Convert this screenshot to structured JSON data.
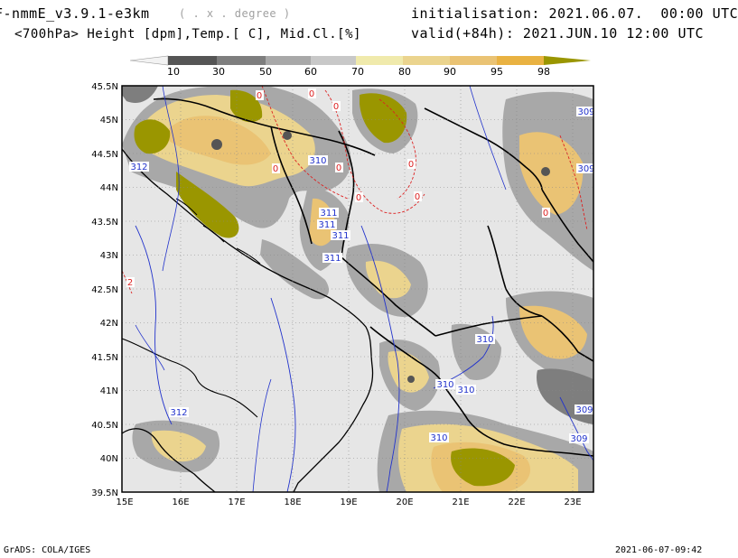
{
  "header": {
    "model_title": "F-nmmE_v3.9.1-e3km",
    "model_subtitle": "( . x . degree )",
    "field_desc": "<700hPa> Height [dpm],Temp.[ C], Mid.Cl.[%]",
    "init_line": "initialisation: 2021.06.07.  00:00 UTC",
    "valid_line": "valid(+84h): 2021.JUN.10 12:00 UTC"
  },
  "colorbar": {
    "labels": [
      "10",
      "30",
      "50",
      "60",
      "70",
      "80",
      "90",
      "95",
      "98"
    ],
    "colors": [
      "#f2f2f2",
      "#555555",
      "#7e7e7e",
      "#a8a8a8",
      "#c8c8c8",
      "#f0eaac",
      "#ebd48e",
      "#eac374",
      "#e9b242",
      "#9a9600"
    ]
  },
  "map": {
    "background": "#e6e6e6",
    "lat_labels": [
      "45.5N",
      "45N",
      "44.5N",
      "44N",
      "43.5N",
      "43N",
      "42.5N",
      "42N",
      "41.5N",
      "41N",
      "40.5N",
      "40N",
      "39.5N"
    ],
    "lon_labels": [
      "15E",
      "16E",
      "17E",
      "18E",
      "19E",
      "20E",
      "21E",
      "22E",
      "23E"
    ],
    "height_contour_labels": [
      "312",
      "310",
      "311",
      "311",
      "311",
      "311",
      "310",
      "310",
      "310",
      "312",
      "310",
      "309",
      "309",
      "309",
      "309"
    ],
    "temp_contour_labels": [
      "0",
      "0",
      "0",
      "0",
      "0",
      "0",
      "0",
      "0",
      "0",
      "2"
    ],
    "colors": {
      "height_contour": "#2233cc",
      "temp_contour": "#dd2222",
      "borders": "#000000",
      "grid": "#888888"
    }
  },
  "footer": {
    "credit": "GrADS: COLA/IGES",
    "stamp": "2021-06-07-09:42"
  }
}
